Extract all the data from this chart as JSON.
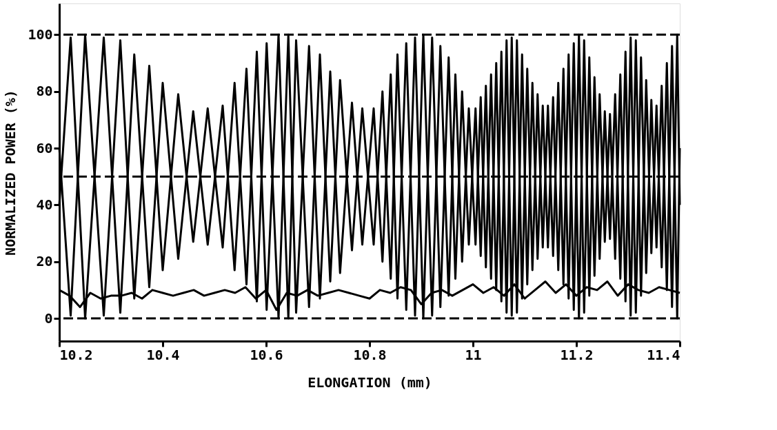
{
  "chart_data": {
    "type": "line",
    "xlabel": "ELONGATION (mm)",
    "ylabel": "NORMALIZED POWER (%)",
    "xlim": [
      10.2,
      11.4
    ],
    "ylim": [
      -8,
      111
    ],
    "xticks": [
      10.2,
      10.4,
      10.6,
      10.8,
      11,
      11.2,
      11.4
    ],
    "yticks": [
      0,
      20,
      40,
      60,
      80,
      100
    ],
    "grid": false,
    "line_style": "solid",
    "x": [
      10.2,
      10.222,
      10.25,
      10.286,
      10.318,
      10.345,
      10.374,
      10.4,
      10.43,
      10.459,
      10.487,
      10.516,
      10.539,
      10.562,
      10.582,
      10.601,
      10.624,
      10.643,
      10.658,
      10.683,
      10.704,
      10.724,
      10.743,
      10.766,
      10.786,
      10.808,
      10.825,
      10.841,
      10.854,
      10.871,
      10.888,
      10.904,
      10.921,
      10.937,
      10.953,
      10.966,
      10.979,
      10.992,
      11.005,
      11.015,
      11.025,
      11.035,
      11.045,
      11.055,
      11.065,
      11.075,
      11.085,
      11.095,
      11.105,
      11.115,
      11.125,
      11.135,
      11.145,
      11.155,
      11.165,
      11.175,
      11.185,
      11.195,
      11.205,
      11.215,
      11.225,
      11.235,
      11.245,
      11.255,
      11.265,
      11.275,
      11.285,
      11.295,
      11.305,
      11.315,
      11.325,
      11.335,
      11.345,
      11.355,
      11.365,
      11.375,
      11.385,
      11.395,
      11.4
    ],
    "series": [
      {
        "color": "#000000",
        "values": [
          40,
          99,
          0,
          99,
          2,
          93,
          11,
          83,
          21,
          73,
          26,
          75,
          17,
          88,
          6,
          97,
          0,
          100,
          2,
          96,
          7,
          87,
          16,
          76,
          26,
          74,
          20,
          86,
          7,
          97,
          1,
          100,
          1,
          96,
          8,
          86,
          20,
          74,
          26,
          78,
          18,
          86,
          10,
          94,
          2,
          99,
          2,
          93,
          12,
          83,
          21,
          75,
          25,
          78,
          17,
          88,
          7,
          97,
          0,
          98,
          8,
          85,
          21,
          73,
          28,
          79,
          14,
          94,
          1,
          98,
          8,
          84,
          23,
          75,
          18,
          90,
          4,
          100,
          40
        ]
      },
      {
        "color": "#000000",
        "values": [
          60,
          1,
          100,
          1,
          98,
          7,
          89,
          17,
          79,
          27,
          74,
          25,
          83,
          12,
          94,
          3,
          100,
          0,
          98,
          4,
          93,
          13,
          84,
          24,
          74,
          26,
          80,
          14,
          93,
          3,
          99,
          0,
          99,
          4,
          92,
          14,
          80,
          26,
          74,
          22,
          82,
          14,
          90,
          6,
          98,
          1,
          98,
          7,
          88,
          17,
          79,
          25,
          75,
          22,
          83,
          12,
          93,
          3,
          100,
          2,
          92,
          15,
          79,
          27,
          72,
          21,
          86,
          6,
          99,
          2,
          92,
          16,
          77,
          25,
          82,
          10,
          96,
          0,
          60
        ]
      },
      {
        "color": "#000000",
        "x": [
          10.2,
          10.22,
          10.24,
          10.26,
          10.28,
          10.3,
          10.32,
          10.34,
          10.36,
          10.38,
          10.4,
          10.42,
          10.44,
          10.46,
          10.48,
          10.5,
          10.52,
          10.54,
          10.56,
          10.58,
          10.6,
          10.62,
          10.64,
          10.66,
          10.68,
          10.7,
          10.72,
          10.74,
          10.76,
          10.78,
          10.8,
          10.82,
          10.84,
          10.86,
          10.88,
          10.9,
          10.92,
          10.94,
          10.96,
          10.98,
          11,
          11.02,
          11.04,
          11.06,
          11.08,
          11.1,
          11.12,
          11.14,
          11.16,
          11.18,
          11.2,
          11.22,
          11.24,
          11.26,
          11.28,
          11.3,
          11.32,
          11.34,
          11.36,
          11.38,
          11.4
        ],
        "values": [
          10,
          8,
          4,
          9,
          7,
          8,
          8,
          9,
          7,
          10,
          9,
          8,
          9,
          10,
          8,
          9,
          10,
          9,
          11,
          7,
          10,
          3,
          9,
          8,
          10,
          8,
          9,
          10,
          9,
          8,
          7,
          10,
          9,
          11,
          10,
          5,
          9,
          10,
          8,
          10,
          12,
          9,
          11,
          8,
          12,
          7,
          10,
          13,
          9,
          12,
          8,
          11,
          10,
          13,
          8,
          12,
          10,
          9,
          11,
          10,
          9
        ]
      }
    ],
    "ref_lines": [
      {
        "axis": "y",
        "value": 0,
        "color": "#000000",
        "line_style": "dashed"
      },
      {
        "axis": "y",
        "value": 50,
        "color": "#000000",
        "line_style": "dashed"
      },
      {
        "axis": "y",
        "value": 100,
        "color": "#000000",
        "line_style": "dashed"
      }
    ]
  }
}
